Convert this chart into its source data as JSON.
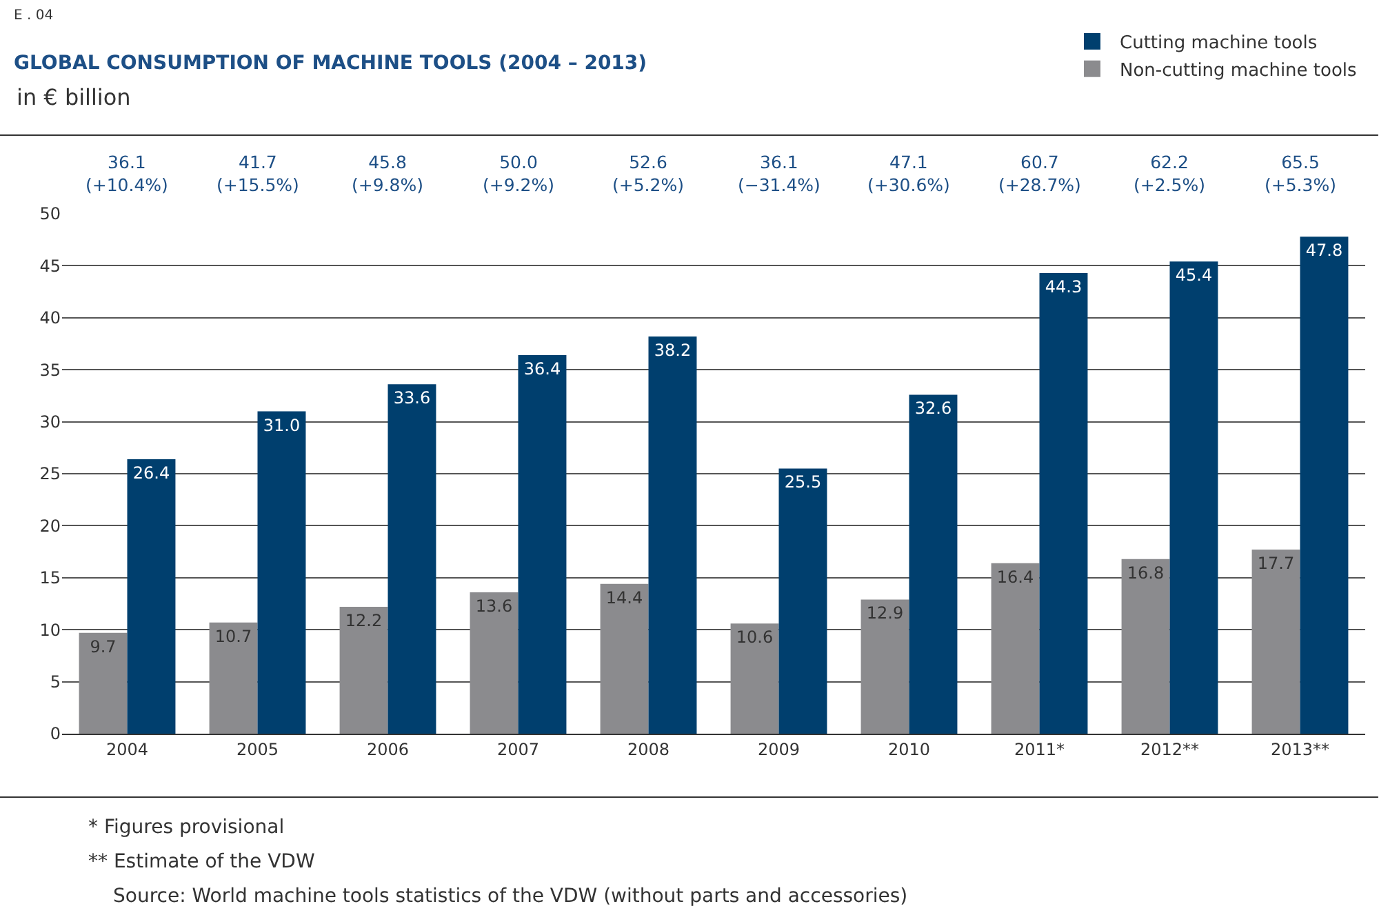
{
  "chart_data": {
    "type": "bar",
    "title": "GLOBAL CONSUMPTION OF MACHINE TOOLS (2004 – 2013)",
    "subtitle": "in € billion",
    "categories": [
      "2004",
      "2005",
      "2006",
      "2007",
      "2008",
      "2009",
      "2010",
      "2011*",
      "2012**",
      "2013**"
    ],
    "series": [
      {
        "name": "Non-cutting machine tools",
        "color": "#8b8b8e",
        "values": [
          9.7,
          10.7,
          12.2,
          13.6,
          14.4,
          10.6,
          12.9,
          16.4,
          16.8,
          17.7
        ],
        "value_labels": [
          "9.7",
          "10.7",
          "12.2",
          "13.6",
          "14.4",
          "10.6",
          "12.9",
          "16.4",
          "16.8",
          "17.7"
        ]
      },
      {
        "name": "Cutting machine tools",
        "color": "#003f6e",
        "values": [
          26.4,
          31.0,
          33.6,
          36.4,
          38.2,
          25.5,
          32.6,
          44.3,
          45.4,
          47.8
        ],
        "value_labels": [
          "26.4",
          "31.0",
          "33.6",
          "36.4",
          "38.2",
          "25.5",
          "32.6",
          "44.3",
          "45.4",
          "47.8"
        ]
      }
    ],
    "ylim": [
      0,
      50
    ],
    "yticks": [
      0,
      5,
      10,
      15,
      20,
      25,
      30,
      35,
      40,
      45,
      50
    ],
    "grid": "y",
    "legend": "top right",
    "annotations": [
      "36.1\n(+10.4%)",
      "41.7\n(+15.5%)",
      "45.8\n(+9.8%)",
      "50.0\n(+9.2%)",
      "52.6\n(+5.2%)",
      "36.1\n(−31.4%)",
      "47.1\n(+30.6%)",
      "60.7\n(+28.7%)",
      "62.2\n(+2.5%)",
      "65.5\n(+5.3%)",
      "E . 04",
      "* Figures provisional",
      "** Estimate of the VDW",
      "Source: World machine tools statistics of the VDW (without parts and accessories)"
    ]
  }
}
